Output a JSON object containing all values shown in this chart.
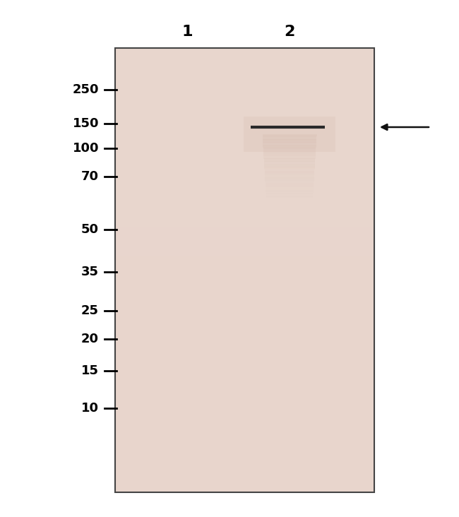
{
  "white_bg": "#ffffff",
  "gel_background": "#e8d5cc",
  "gel_border_color": "#444444",
  "lane_labels": [
    "1",
    "2"
  ],
  "lane_label_fontsize": 16,
  "lane_label_fontweight": "bold",
  "mw_markers": [
    250,
    150,
    100,
    70,
    50,
    35,
    25,
    20,
    15,
    10
  ],
  "mw_fontsize": 13,
  "mw_fontweight": "bold",
  "band_color": "#2a2a2a",
  "band_linewidth": 3.0,
  "arrow_color": "#111111",
  "smear_color": "#c8a898"
}
